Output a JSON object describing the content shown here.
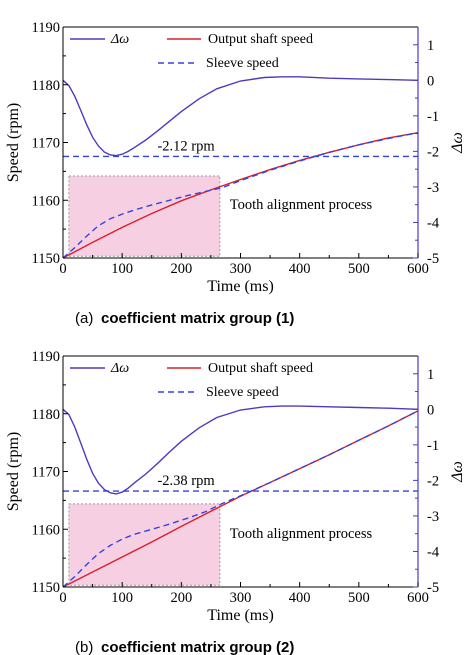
{
  "chart_data": [
    {
      "type": "line",
      "caption_prefix": "(a)",
      "caption": "coefficient matrix group (1)",
      "xlabel": "Time (ms)",
      "ylabel": "Speed (rpm)",
      "y2label": "Δω",
      "xlim": [
        0,
        600
      ],
      "ylim": [
        1150,
        1190
      ],
      "y2lim": [
        -5,
        1.5
      ],
      "xticks": [
        "0",
        "100",
        "200",
        "300",
        "400",
        "500",
        "600"
      ],
      "yticks": [
        "1150",
        "1160",
        "1170",
        "1180",
        "1190"
      ],
      "y2ticks": [
        "-5",
        "-4",
        "-3",
        "-2",
        "-1",
        "0",
        "1"
      ],
      "legend": {
        "omega": "Δω",
        "output": "Output shaft speed",
        "sleeve": "Sleeve speed"
      },
      "series": [
        {
          "name": "Δω",
          "axis": "right",
          "color": "#4b3bc0",
          "x": [
            0,
            10,
            20,
            30,
            40,
            50,
            60,
            70,
            80,
            90,
            100,
            110,
            120,
            140,
            160,
            180,
            200,
            230,
            260,
            300,
            340,
            370,
            400,
            450,
            500,
            550,
            600
          ],
          "y": [
            0.0,
            -0.15,
            -0.45,
            -0.85,
            -1.25,
            -1.6,
            -1.85,
            -2.02,
            -2.1,
            -2.12,
            -2.08,
            -2.0,
            -1.9,
            -1.68,
            -1.42,
            -1.15,
            -0.88,
            -0.52,
            -0.24,
            -0.02,
            0.08,
            0.1,
            0.1,
            0.06,
            0.04,
            0.02,
            0.0
          ]
        },
        {
          "name": "Output shaft speed",
          "axis": "left",
          "color": "#d9202a",
          "x": [
            0,
            50,
            100,
            150,
            200,
            250,
            300,
            350,
            400,
            450,
            500,
            550,
            600
          ],
          "y": [
            1150.0,
            1152.7,
            1155.3,
            1157.7,
            1159.9,
            1161.8,
            1163.6,
            1165.3,
            1166.9,
            1168.3,
            1169.6,
            1170.8,
            1171.7
          ]
        },
        {
          "name": "Sleeve speed",
          "axis": "left",
          "color": "#3344dd",
          "dashed": true,
          "x": [
            0,
            20,
            40,
            60,
            80,
            100,
            120,
            150,
            180,
            210,
            240,
            270,
            300,
            350,
            400,
            450,
            500,
            550,
            600
          ],
          "y": [
            1150.0,
            1151.8,
            1153.8,
            1155.6,
            1156.8,
            1157.6,
            1158.3,
            1159.2,
            1160.0,
            1160.8,
            1161.5,
            1162.2,
            1163.4,
            1165.2,
            1166.8,
            1168.3,
            1169.6,
            1170.7,
            1171.7
          ]
        },
        {
          "name": "reference",
          "axis": "left",
          "color": "#3344dd",
          "dashed": true,
          "x": [
            0,
            600
          ],
          "y": [
            1167.6,
            1167.6
          ]
        }
      ],
      "annotations": {
        "delta_text": "-2.12 rpm",
        "region_text": "Tooth alignment process"
      },
      "shaded_region": {
        "x": [
          10,
          265
        ],
        "y": [
          1150.3,
          1164.2
        ],
        "color": "#f7cfe3"
      }
    },
    {
      "type": "line",
      "caption_prefix": "(b)",
      "caption": "coefficient matrix group (2)",
      "xlabel": "Time (ms)",
      "ylabel": "Speed (rpm)",
      "y2label": "Δω",
      "xlim": [
        0,
        600
      ],
      "ylim": [
        1150,
        1190
      ],
      "y2lim": [
        -5,
        1.5
      ],
      "xticks": [
        "0",
        "100",
        "200",
        "300",
        "400",
        "500",
        "600"
      ],
      "yticks": [
        "1150",
        "1160",
        "1170",
        "1180",
        "1190"
      ],
      "y2ticks": [
        "-5",
        "-4",
        "-3",
        "-2",
        "-1",
        "0",
        "1"
      ],
      "legend": {
        "omega": "Δω",
        "output": "Output shaft speed",
        "sleeve": "Sleeve speed"
      },
      "series": [
        {
          "name": "Δω",
          "axis": "right",
          "color": "#4b3bc0",
          "x": [
            0,
            10,
            20,
            30,
            40,
            50,
            60,
            70,
            80,
            90,
            100,
            110,
            120,
            140,
            160,
            180,
            200,
            230,
            260,
            300,
            340,
            370,
            400,
            450,
            500,
            550,
            600
          ],
          "y": [
            0.0,
            -0.15,
            -0.5,
            -0.95,
            -1.4,
            -1.8,
            -2.08,
            -2.26,
            -2.35,
            -2.38,
            -2.33,
            -2.22,
            -2.08,
            -1.82,
            -1.52,
            -1.2,
            -0.9,
            -0.52,
            -0.23,
            -0.02,
            0.07,
            0.09,
            0.09,
            0.07,
            0.05,
            0.03,
            0.0
          ]
        },
        {
          "name": "Output shaft speed",
          "axis": "left",
          "color": "#d9202a",
          "x": [
            0,
            50,
            100,
            150,
            200,
            250,
            300,
            350,
            400,
            450,
            500,
            550,
            600
          ],
          "y": [
            1150.0,
            1152.6,
            1155.2,
            1157.8,
            1160.5,
            1163.1,
            1165.7,
            1168.1,
            1170.5,
            1172.9,
            1175.4,
            1177.9,
            1180.5
          ]
        },
        {
          "name": "Sleeve speed",
          "axis": "left",
          "color": "#3344dd",
          "dashed": true,
          "x": [
            0,
            20,
            40,
            60,
            80,
            100,
            120,
            150,
            180,
            210,
            240,
            270,
            300,
            350,
            400,
            450,
            500,
            550,
            600
          ],
          "y": [
            1150.0,
            1151.8,
            1153.9,
            1155.8,
            1157.2,
            1158.3,
            1159.1,
            1160.0,
            1160.9,
            1161.9,
            1163.0,
            1164.5,
            1165.8,
            1168.1,
            1170.5,
            1172.9,
            1175.4,
            1177.9,
            1180.5
          ]
        },
        {
          "name": "reference",
          "axis": "left",
          "color": "#3344dd",
          "dashed": true,
          "x": [
            0,
            600
          ],
          "y": [
            1166.6,
            1166.6
          ]
        }
      ],
      "annotations": {
        "delta_text": "-2.38 rpm",
        "region_text": "Tooth alignment process"
      },
      "shaded_region": {
        "x": [
          10,
          265
        ],
        "y": [
          1150.3,
          1164.4
        ],
        "color": "#f7cfe3"
      }
    }
  ]
}
